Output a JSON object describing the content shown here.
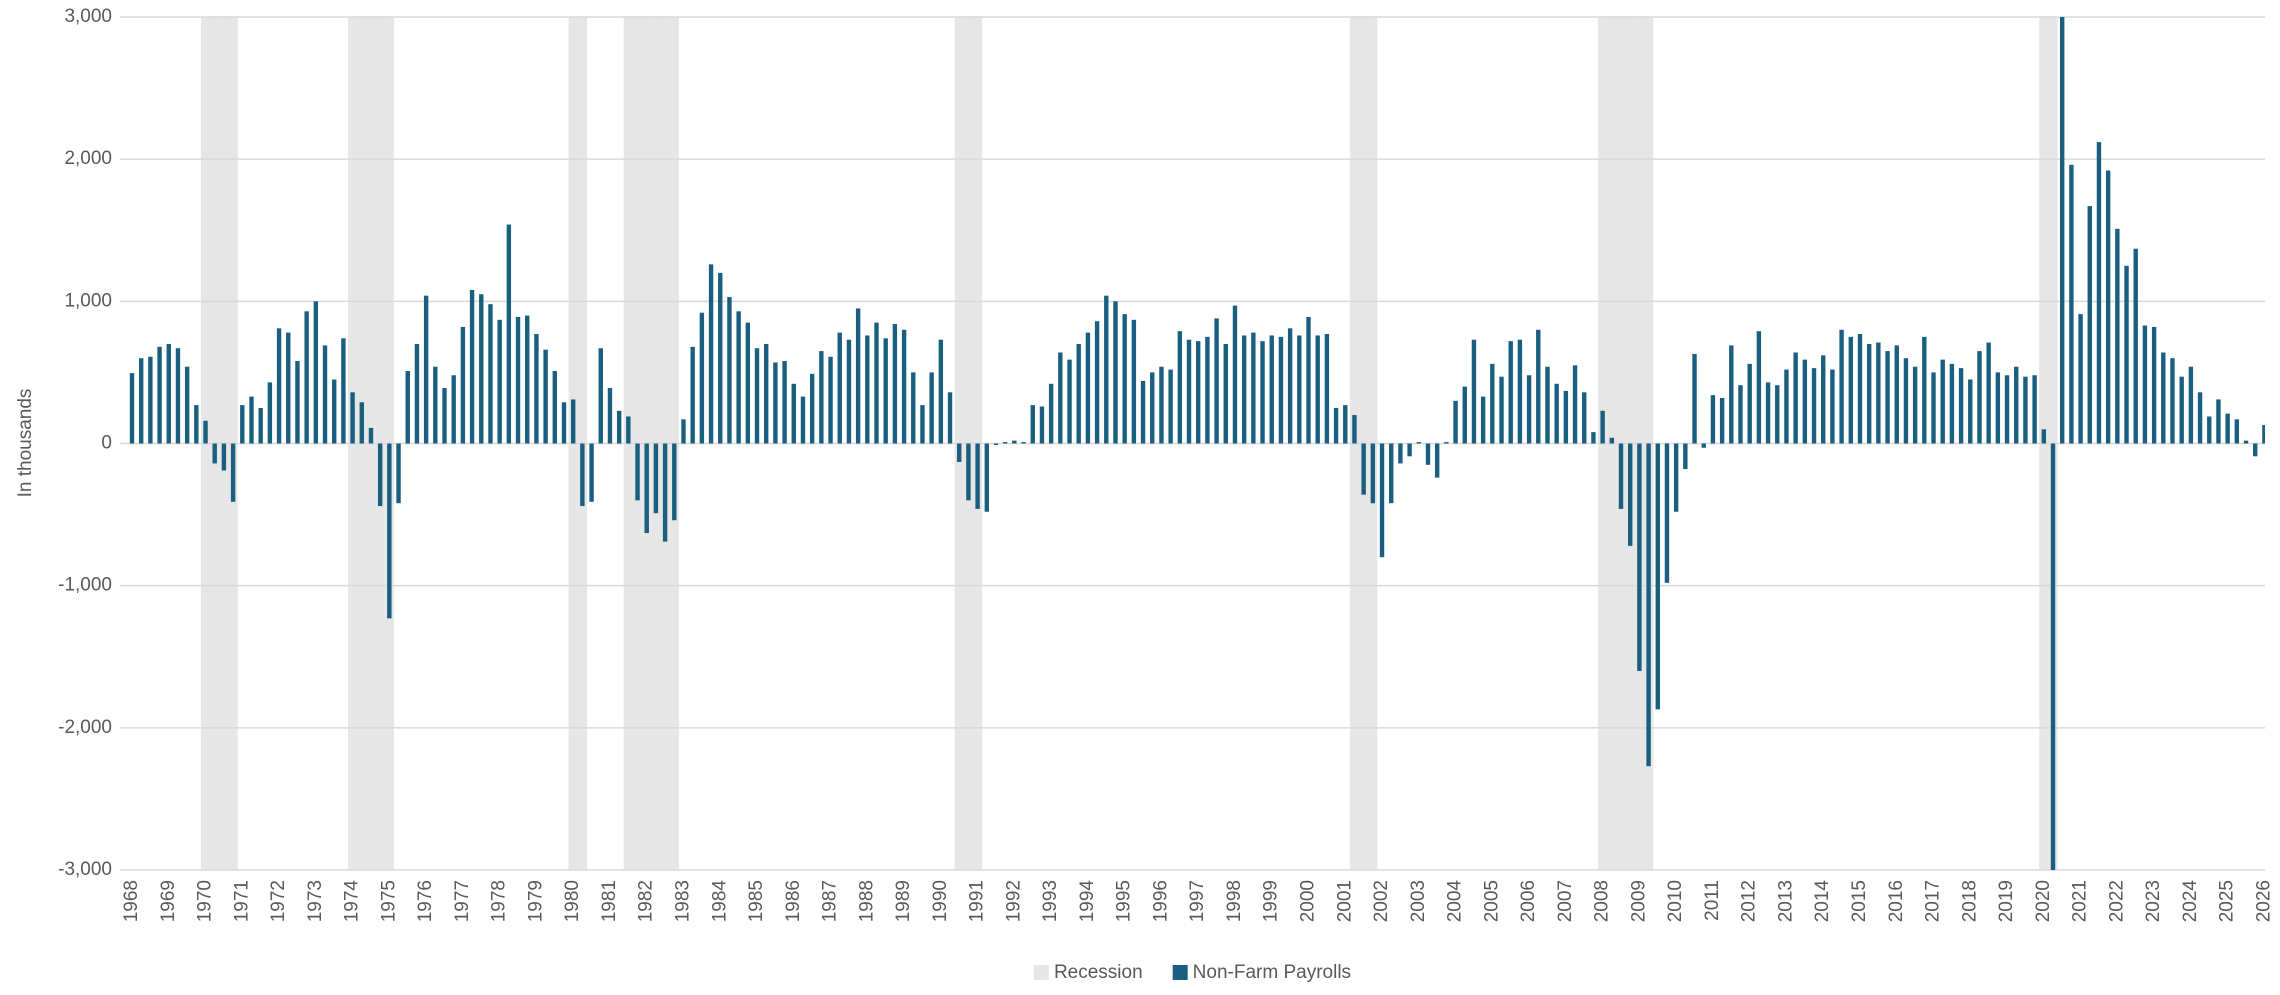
{
  "chart_data": {
    "type": "bar",
    "yaxis_label": "In thousands",
    "categories": [
      "1968",
      null,
      null,
      null,
      "1969",
      null,
      null,
      null,
      "1970",
      null,
      null,
      null,
      "1971",
      null,
      null,
      null,
      "1972",
      null,
      null,
      null,
      "1973",
      null,
      null,
      null,
      "1974",
      null,
      null,
      null,
      "1975",
      null,
      null,
      null,
      "1976",
      null,
      null,
      null,
      "1977",
      null,
      null,
      null,
      "1978",
      null,
      null,
      null,
      "1979",
      null,
      null,
      null,
      "1980",
      null,
      null,
      null,
      "1981",
      null,
      null,
      null,
      "1982",
      null,
      null,
      null,
      "1983",
      null,
      null,
      null,
      "1984",
      null,
      null,
      null,
      "1985",
      null,
      null,
      null,
      "1986",
      null,
      null,
      null,
      "1987",
      null,
      null,
      null,
      "1988",
      null,
      null,
      null,
      "1989",
      null,
      null,
      null,
      "1990",
      null,
      null,
      null,
      "1991",
      null,
      null,
      null,
      "1992",
      null,
      null,
      null,
      "1993",
      null,
      null,
      null,
      "1994",
      null,
      null,
      null,
      "1995",
      null,
      null,
      null,
      "1996",
      null,
      null,
      null,
      "1997",
      null,
      null,
      null,
      "1998",
      null,
      null,
      null,
      "1999",
      null,
      null,
      null,
      "2000",
      null,
      null,
      null,
      "2001",
      null,
      null,
      null,
      "2002",
      null,
      null,
      null,
      "2003",
      null,
      null,
      null,
      "2004",
      null,
      null,
      null,
      "2005",
      null,
      null,
      null,
      "2006",
      null,
      null,
      null,
      "2007",
      null,
      null,
      null,
      "2008",
      null,
      null,
      null,
      "2009",
      null,
      null,
      null,
      "2010",
      null,
      null,
      null,
      "2011",
      null,
      null,
      null,
      "2012",
      null,
      null,
      null,
      "2013",
      null,
      null,
      null,
      "2014",
      null,
      null,
      null,
      "2015",
      null,
      null,
      null,
      "2016",
      null,
      null,
      null,
      "2017",
      null,
      null,
      null,
      "2018",
      null,
      null,
      null,
      "2019",
      null,
      null,
      null,
      "2020",
      null,
      null,
      null,
      "2021",
      null,
      null,
      null,
      "2022",
      null,
      null,
      null,
      "2023",
      null,
      null,
      null,
      "2024",
      null,
      null,
      null,
      "2025",
      null,
      null,
      null,
      "2026"
    ],
    "series": [
      {
        "name": "Recession",
        "color": "#e6e6e6",
        "axis": "y2",
        "values": [
          0,
          0,
          0,
          0,
          0,
          0,
          0,
          0,
          1,
          1,
          1,
          1,
          0,
          0,
          0,
          0,
          0,
          0,
          0,
          0,
          0,
          0,
          0,
          0,
          1,
          1,
          1,
          1,
          1,
          0,
          0,
          0,
          0,
          0,
          0,
          0,
          0,
          0,
          0,
          0,
          0,
          0,
          0,
          0,
          0,
          0,
          0,
          0,
          1,
          1,
          0,
          0,
          0,
          0,
          1,
          1,
          1,
          1,
          1,
          1,
          0,
          0,
          0,
          0,
          0,
          0,
          0,
          0,
          0,
          0,
          0,
          0,
          0,
          0,
          0,
          0,
          0,
          0,
          0,
          0,
          0,
          0,
          0,
          0,
          0,
          0,
          0,
          0,
          0,
          0,
          1,
          1,
          1,
          0,
          0,
          0,
          0,
          0,
          0,
          0,
          0,
          0,
          0,
          0,
          0,
          0,
          0,
          0,
          0,
          0,
          0,
          0,
          0,
          0,
          0,
          0,
          0,
          0,
          0,
          0,
          0,
          0,
          0,
          0,
          0,
          0,
          0,
          0,
          0,
          0,
          0,
          0,
          0,
          1,
          1,
          1,
          0,
          0,
          0,
          0,
          0,
          0,
          0,
          0,
          0,
          0,
          0,
          0,
          0,
          0,
          0,
          0,
          0,
          0,
          0,
          0,
          0,
          0,
          0,
          0,
          1,
          1,
          1,
          1,
          1,
          1,
          0,
          0,
          0,
          0,
          0,
          0,
          0,
          0,
          0,
          0,
          0,
          0,
          0,
          0,
          0,
          0,
          0,
          0,
          0,
          0,
          0,
          0,
          0,
          0,
          0,
          0,
          0,
          0,
          0,
          0,
          0,
          0,
          0,
          0,
          0,
          0,
          0,
          0,
          0,
          0,
          0,
          0,
          1,
          1,
          0,
          0,
          0,
          0,
          0,
          0,
          0,
          0,
          0,
          0,
          0,
          0,
          0,
          0,
          0,
          0,
          0,
          0,
          0,
          0,
          0,
          0,
          0
        ]
      },
      {
        "name": "Non-Farm Payrolls",
        "color": "#1a5e80",
        "values": [
          495,
          600,
          610,
          680,
          700,
          670,
          540,
          270,
          160,
          -140,
          -190,
          -410,
          270,
          330,
          250,
          430,
          810,
          780,
          580,
          930,
          1000,
          690,
          450,
          740,
          360,
          290,
          110,
          -440,
          -1230,
          -420,
          510,
          700,
          1040,
          540,
          390,
          480,
          820,
          1080,
          1050,
          980,
          870,
          1540,
          890,
          900,
          770,
          660,
          510,
          290,
          310,
          -440,
          -410,
          670,
          390,
          230,
          190,
          -400,
          -630,
          -490,
          -690,
          -540,
          170,
          680,
          920,
          1260,
          1200,
          1030,
          930,
          850,
          670,
          700,
          570,
          580,
          420,
          330,
          490,
          650,
          610,
          780,
          730,
          950,
          760,
          850,
          740,
          840,
          800,
          500,
          270,
          500,
          730,
          360,
          -130,
          -400,
          -460,
          -480,
          -10,
          10,
          20,
          10,
          270,
          260,
          420,
          640,
          590,
          700,
          780,
          860,
          1040,
          1000,
          910,
          870,
          440,
          500,
          540,
          520,
          790,
          730,
          720,
          750,
          880,
          700,
          970,
          760,
          780,
          720,
          760,
          750,
          810,
          760,
          890,
          760,
          770,
          250,
          270,
          200,
          -360,
          -420,
          -800,
          -420,
          -140,
          -90,
          10,
          -150,
          -240,
          10,
          300,
          400,
          730,
          330,
          560,
          470,
          720,
          730,
          480,
          800,
          540,
          420,
          370,
          550,
          360,
          80,
          230,
          40,
          -460,
          -720,
          -1600,
          -2270,
          -1870,
          -980,
          -480,
          -180,
          630,
          -30,
          340,
          320,
          690,
          410,
          560,
          790,
          430,
          410,
          520,
          640,
          590,
          530,
          620,
          520,
          800,
          750,
          770,
          700,
          710,
          650,
          690,
          600,
          540,
          750,
          500,
          590,
          560,
          530,
          450,
          650,
          710,
          500,
          480,
          540,
          470,
          480,
          100,
          -3000,
          3000,
          1960,
          910,
          1670,
          2120,
          1920,
          1510,
          1250,
          1370,
          830,
          820,
          640,
          600,
          470,
          540,
          360,
          190,
          310,
          210,
          170,
          20,
          -90,
          130
        ]
      }
    ],
    "ylim": [
      -3000,
      3000
    ],
    "yticks": [
      {
        "value": -3000,
        "label": "-3,000"
      },
      {
        "value": -2000,
        "label": "-2,000"
      },
      {
        "value": -1000,
        "label": "-1,000"
      },
      0,
      {
        "value": 1000,
        "label": "1,000"
      },
      {
        "value": 2000,
        "label": "2,000"
      },
      {
        "value": 3000,
        "label": "3,000"
      }
    ],
    "y2lim": [
      0,
      1
    ],
    "grid": true,
    "legend": "bottom"
  }
}
